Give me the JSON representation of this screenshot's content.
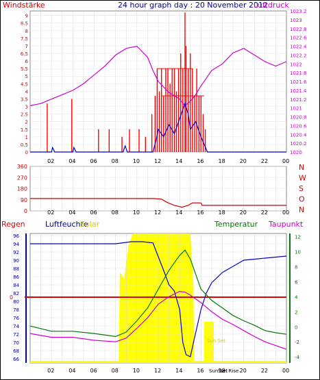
{
  "header": {
    "title": "24 hour graph day : 20 November 2012",
    "left_label": "Windstärke",
    "right_label": "Luftdruck"
  },
  "chart_data": [
    {
      "type": "line",
      "id": "wind_pressure",
      "xticks": [
        "02",
        "04",
        "06",
        "08",
        "10",
        "12",
        "14",
        "16",
        "18",
        "20",
        "22",
        "00"
      ],
      "left_axis": {
        "label": "Windstärke",
        "ticks": [
          "0",
          "0.5",
          "1",
          "1.5",
          "2",
          "2.5",
          "3",
          "3.5",
          "4",
          "4.5",
          "5",
          "5.5",
          "6",
          "6.5",
          "7",
          "7.5",
          "8",
          "8.5",
          "9"
        ],
        "range": [
          0,
          9.3
        ]
      },
      "right_axis": {
        "label": "Luftdruck",
        "ticks": [
          "1020",
          "1020.2",
          "1020.4",
          "1020.6",
          "1020.8",
          "1021",
          "1021.2",
          "1021.4",
          "1021.6",
          "1021.8",
          "1022",
          "1022.2",
          "1022.4",
          "1022.6",
          "1022.8",
          "1023",
          "1023.2"
        ],
        "range": [
          1020,
          1023.2
        ]
      },
      "series": [
        {
          "role": "pressure",
          "color": "#cc00cc",
          "x": [
            0,
            1,
            2,
            3,
            4,
            5,
            6,
            7,
            8,
            9,
            10,
            11,
            11.5,
            12,
            13,
            14,
            14.5,
            15,
            15.5,
            16,
            17,
            18,
            19,
            20,
            21,
            22,
            23,
            24
          ],
          "y": [
            1021.05,
            1021.1,
            1021.2,
            1021.3,
            1021.4,
            1021.55,
            1021.75,
            1021.95,
            1022.2,
            1022.35,
            1022.4,
            1022.15,
            1021.85,
            1021.6,
            1021.35,
            1021.2,
            1021.05,
            1021.15,
            1021.3,
            1021.5,
            1021.85,
            1022.0,
            1022.25,
            1022.35,
            1022.2,
            1022.05,
            1021.95,
            1022.05
          ]
        },
        {
          "role": "wind_avg",
          "color": "#0000cc",
          "x": [
            0,
            2,
            2.1,
            2.3,
            4,
            4.1,
            4.3,
            8.7,
            8.9,
            9.1,
            11.5,
            11.8,
            12,
            12.5,
            13,
            13.5,
            14,
            14.5,
            14.8,
            15,
            15.5,
            16,
            16.3,
            16.6,
            24
          ],
          "y": [
            0,
            0,
            0.3,
            0,
            0,
            0.3,
            0,
            0,
            0.4,
            0,
            0,
            0.8,
            1.5,
            1.0,
            1.8,
            1.2,
            2.2,
            3.2,
            2.5,
            1.5,
            2.0,
            1.0,
            0.5,
            0,
            0
          ]
        }
      ],
      "bars": {
        "role": "wind_gust",
        "color": "#ff0000",
        "x": [
          1.6,
          3.9,
          6.4,
          7.4,
          8.6,
          9.3,
          10.2,
          10.8,
          11.4,
          11.7,
          11.9,
          12.1,
          12.3,
          12.5,
          12.7,
          12.9,
          13.1,
          13.3,
          13.5,
          13.7,
          13.9,
          14.1,
          14.3,
          14.5,
          14.6,
          14.8,
          15.0,
          15.2,
          15.4,
          15.6,
          15.8,
          16.0,
          16.2,
          16.4
        ],
        "y": [
          3.2,
          3.5,
          1.5,
          1.5,
          1.0,
          1.5,
          1.5,
          1.0,
          2.5,
          3.7,
          5.5,
          4.0,
          5.5,
          3.7,
          5.5,
          5.5,
          4.5,
          5.5,
          5.5,
          4.0,
          5.5,
          6.5,
          5.5,
          9.2,
          7.0,
          5.5,
          6.5,
          5.5,
          3.7,
          5.5,
          3.7,
          3.7,
          2.5,
          1.5
        ]
      }
    },
    {
      "type": "line",
      "id": "wind_direction",
      "xticks": [
        "02",
        "04",
        "06",
        "08",
        "10",
        "12",
        "14",
        "16",
        "18",
        "20",
        "22",
        "00"
      ],
      "left_axis": {
        "ticks": [
          "0",
          "90",
          "180",
          "270",
          "360"
        ],
        "range": [
          0,
          360
        ]
      },
      "right_axis": {
        "ticks": [
          "N",
          "W",
          "S",
          "O",
          "N"
        ]
      },
      "series": [
        {
          "role": "direction",
          "color": "#cc0000",
          "x": [
            0,
            11.5,
            12.3,
            12.8,
            13.5,
            14.2,
            14.8,
            15.2,
            16.0,
            16.1,
            24
          ],
          "y": [
            100,
            100,
            95,
            70,
            45,
            30,
            45,
            65,
            65,
            45,
            45
          ]
        }
      ]
    },
    {
      "type": "line",
      "id": "climate",
      "legend": [
        "Regen",
        "Luftfeuchte",
        "Solar",
        "Temperatur",
        "Taupunkt"
      ],
      "xticks": [
        "02",
        "04",
        "06",
        "08",
        "10",
        "12",
        "14",
        "16",
        "18",
        "20",
        "22",
        "00"
      ],
      "sun_labels": [
        "Sun Set",
        "Sun Set",
        "Sun Rise"
      ],
      "rain_axis_label": "0",
      "left_axis": {
        "label": "Luftfeuchte",
        "ticks": [
          "66",
          "68",
          "70",
          "72",
          "74",
          "76",
          "78",
          "80",
          "82",
          "84",
          "86",
          "88",
          "90",
          "92",
          "94",
          "96"
        ],
        "range": [
          65,
          96.5
        ]
      },
      "right_axis": {
        "label": "Temperatur",
        "ticks": [
          "-4",
          "-2",
          "0",
          "2",
          "4",
          "6",
          "8",
          "10",
          "12"
        ],
        "range": [
          -4.8,
          12.4
        ]
      },
      "solar": {
        "role": "solar",
        "color": "#ffff00",
        "x": [
          0,
          8.3,
          8.4,
          8.8,
          9.2,
          9.6,
          10,
          12,
          14,
          15,
          15.3,
          15.35,
          24
        ],
        "y": [
          0,
          0,
          0.7,
          0.65,
          0.9,
          1,
          1,
          1,
          1,
          1,
          0.6,
          0,
          0
        ]
      },
      "series": [
        {
          "role": "humidity",
          "color": "#0000cc",
          "x": [
            0,
            3.5,
            5,
            6.5,
            8,
            9.5,
            10.5,
            11.5,
            12.5,
            13,
            13.5,
            14,
            14.3,
            14.6,
            15,
            15.3,
            16,
            16.5,
            17,
            18,
            19,
            20,
            22,
            24
          ],
          "y": [
            94.0,
            94.0,
            94.0,
            94.0,
            94.0,
            94.5,
            94.5,
            94.2,
            87.5,
            84.0,
            82.5,
            78.0,
            70.0,
            67.0,
            66.5,
            70.0,
            78.0,
            82.0,
            84.5,
            87.0,
            88.5,
            90.0,
            90.5,
            91.0
          ]
        },
        {
          "role": "temperature",
          "color": "#007700",
          "x": [
            0,
            2,
            4,
            6,
            8,
            9,
            10,
            11,
            12,
            13,
            14,
            14.5,
            15,
            15.5,
            16,
            17,
            18,
            19,
            20,
            21,
            22,
            23,
            24
          ],
          "y": [
            0.1,
            -0.6,
            -0.6,
            -0.9,
            -1.3,
            -0.7,
            0.8,
            2.5,
            5.0,
            7.5,
            9.5,
            10.2,
            9.0,
            7.0,
            5.0,
            3.5,
            2.5,
            1.5,
            0.8,
            0.2,
            -0.5,
            -0.8,
            -1.0
          ]
        },
        {
          "role": "dewpoint",
          "color": "#cc00cc",
          "x": [
            0,
            2,
            4,
            6,
            8,
            9,
            10,
            11,
            12,
            13,
            14,
            14.5,
            15,
            16,
            17,
            18,
            19,
            20,
            21,
            22,
            23,
            24
          ],
          "y": [
            -0.9,
            -1.4,
            -1.4,
            -1.8,
            -2.0,
            -1.5,
            -0.2,
            1.2,
            3.0,
            4.0,
            4.7,
            4.6,
            4.2,
            3.2,
            2.0,
            1.0,
            0.3,
            -0.5,
            -1.3,
            -2.0,
            -2.5,
            -3.0
          ]
        }
      ],
      "rain": {
        "role": "rain",
        "color": "#dd0000",
        "y": 0
      }
    }
  ]
}
